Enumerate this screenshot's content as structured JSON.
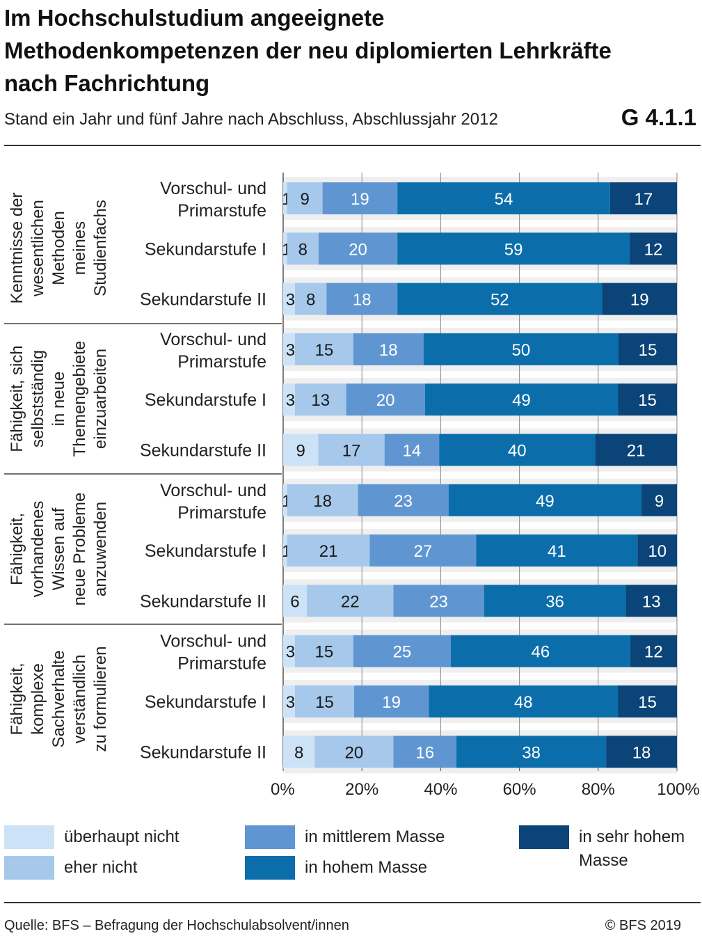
{
  "title": "Im Hochschulstudium angeeignete Methodenkompetenzen der neu diplomierten Lehrkräfte nach Fachrichtung",
  "subtitle": "Stand ein Jahr und fünf Jahre nach Abschluss, Abschlussjahr 2012",
  "code": "G 4.1.1",
  "source": "Quelle: BFS – Befragung der Hochschulabsolvent/innen",
  "copyright": "© BFS 2019",
  "colors": {
    "ueberhaupt_nicht": "#cce3f7",
    "eher_nicht": "#a6c8eb",
    "mittlerem": "#5f96d2",
    "hohem": "#0b6eab",
    "sehr_hohem": "#0a4478",
    "band": "#efefef",
    "grid": "#8a8a8a"
  },
  "chart_data": {
    "type": "bar",
    "orientation": "horizontal",
    "stacked": true,
    "xlim": [
      0,
      100
    ],
    "xticks": [
      "0%",
      "20%",
      "40%",
      "60%",
      "80%",
      "100%"
    ],
    "legend": [
      {
        "label": "überhaupt nicht",
        "color": "#cce3f7"
      },
      {
        "label": "eher nicht",
        "color": "#a6c8eb"
      },
      {
        "label": "in mittlerem Masse",
        "color": "#5f96d2"
      },
      {
        "label": "in hohem Masse",
        "color": "#0b6eab"
      },
      {
        "label": "in sehr hohem Masse",
        "color": "#0a4478"
      }
    ],
    "groups": [
      {
        "label": "Kenntnisse der wesentlichen Methoden meines Studienfachs",
        "rows": [
          {
            "label": "Vorschul- und Primarstufe",
            "values": [
              1,
              9,
              19,
              54,
              17
            ]
          },
          {
            "label": "Sekundarstufe I",
            "values": [
              1,
              8,
              20,
              59,
              12
            ]
          },
          {
            "label": "Sekundarstufe II",
            "values": [
              3,
              8,
              18,
              52,
              19
            ]
          }
        ]
      },
      {
        "label": "Fähigkeit, sich selbstständig in neue Themengebiete einzuarbeiten",
        "rows": [
          {
            "label": "Vorschul- und Primarstufe",
            "values": [
              3,
              15,
              18,
              50,
              15
            ]
          },
          {
            "label": "Sekundarstufe I",
            "values": [
              3,
              13,
              20,
              49,
              15
            ]
          },
          {
            "label": "Sekundarstufe II",
            "values": [
              9,
              17,
              14,
              40,
              21
            ]
          }
        ]
      },
      {
        "label": "Fähigkeit, vorhandenes Wissen auf neue Probleme anzuwenden",
        "rows": [
          {
            "label": "Vorschul- und Primarstufe",
            "values": [
              1,
              18,
              23,
              49,
              9
            ]
          },
          {
            "label": "Sekundarstufe I",
            "values": [
              1,
              21,
              27,
              41,
              10
            ]
          },
          {
            "label": "Sekundarstufe II",
            "values": [
              6,
              22,
              23,
              36,
              13
            ]
          }
        ]
      },
      {
        "label": "Fähigkeit, komplexe Sachverhalte verständlich zu formulieren",
        "rows": [
          {
            "label": "Vorschul- und Primarstufe",
            "values": [
              3,
              15,
              25,
              46,
              12
            ]
          },
          {
            "label": "Sekundarstufe I",
            "values": [
              3,
              15,
              19,
              48,
              15
            ]
          },
          {
            "label": "Sekundarstufe II",
            "values": [
              8,
              20,
              16,
              38,
              18
            ]
          }
        ]
      }
    ]
  }
}
